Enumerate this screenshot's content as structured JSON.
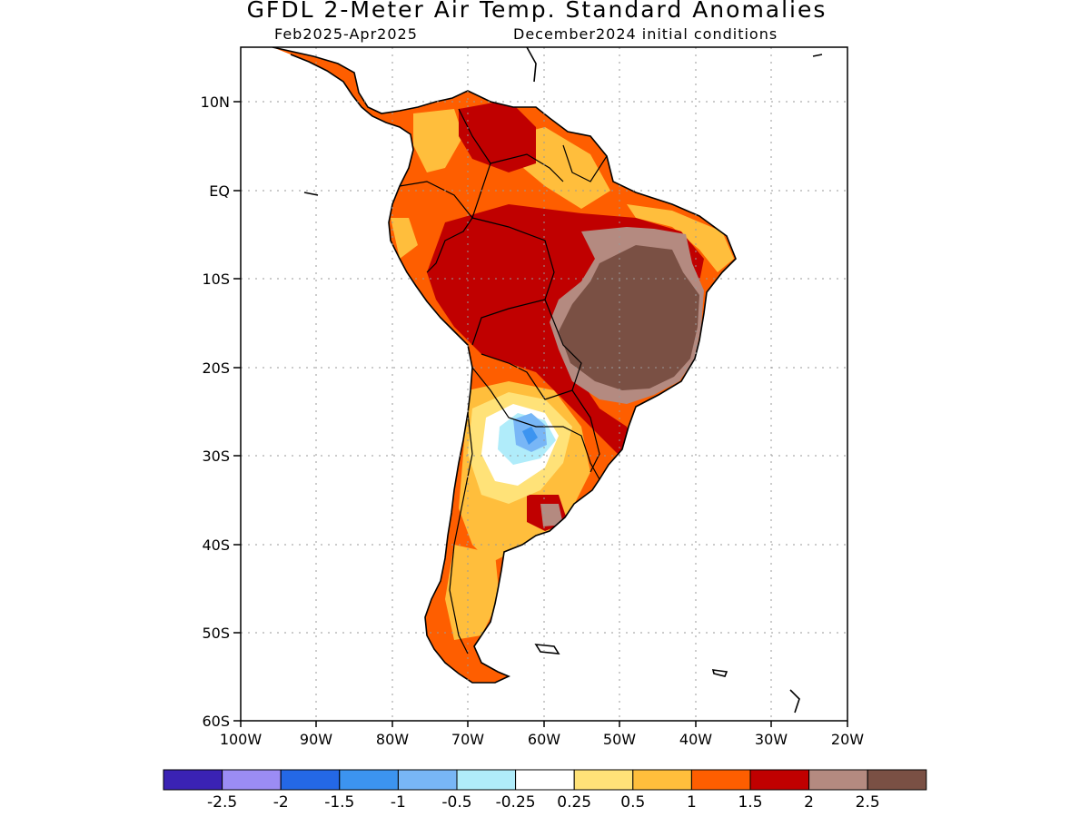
{
  "title": "GFDL 2-Meter Air Temp. Standard Anomalies",
  "subtitle_left": "Feb2025-Apr2025",
  "subtitle_right": "December2024 initial conditions",
  "lat_labels": [
    "10N",
    "EQ",
    "10S",
    "20S",
    "30S",
    "40S",
    "50S",
    "60S"
  ],
  "lon_labels": [
    "100W",
    "90W",
    "80W",
    "70W",
    "60W",
    "50W",
    "40W",
    "30W",
    "20W"
  ],
  "map_extent": {
    "lon": [
      -100,
      -20
    ],
    "lat": [
      -60,
      16
    ]
  },
  "colorbar": {
    "colors": [
      "#3a22b4",
      "#9b8cf4",
      "#2468e6",
      "#3c94f0",
      "#78b6f6",
      "#b0ecfa",
      "#ffffff",
      "#ffe278",
      "#ffbe3c",
      "#fe5e00",
      "#c00000",
      "#b48a80",
      "#7a5044"
    ],
    "labels": [
      "-2.5",
      "-2",
      "-1.5",
      "-1",
      "-0.5",
      "-0.25",
      "0.25",
      "0.5",
      "1",
      "1.5",
      "2",
      "2.5"
    ]
  },
  "colors": {
    "land_moderate": "#ffbe3c",
    "land_warm": "#fe5e00",
    "land_hot": "#c00000",
    "land_very_hot": "#b48a80",
    "land_extreme": "#7a5044",
    "cool_light": "#b0ecfa",
    "cool_mid": "#78b6f6",
    "cool_deep": "#3c94f0",
    "neutral": "#ffffff",
    "weak_warm": "#ffe278"
  }
}
